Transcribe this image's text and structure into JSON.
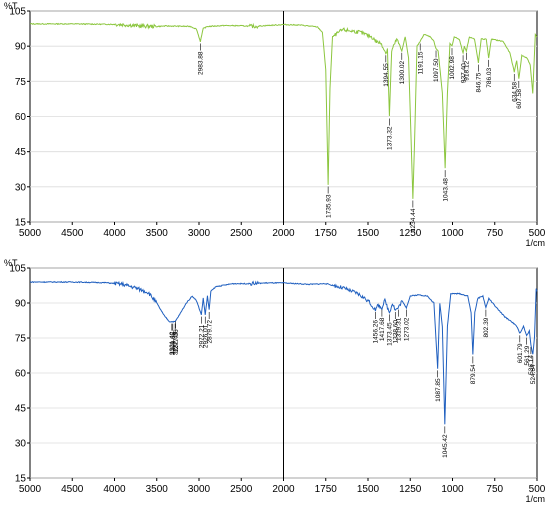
{
  "chart_data": [
    {
      "type": "line",
      "x_unit": "1/cm",
      "y_unit": "%T",
      "xlim": [
        5000,
        500
      ],
      "ylim": [
        15,
        105
      ],
      "x_ticks": [
        "5000",
        "4500",
        "4000",
        "3500",
        "3000",
        "2500",
        "2000",
        "1750",
        "1500",
        "1250",
        "1000",
        "750",
        "500"
      ],
      "y_ticks": [
        "15",
        "30",
        "45",
        "60",
        "75",
        "90",
        "105"
      ],
      "series_color": "#8cc63f",
      "peaks": [
        {
          "label": "2983.88",
          "x": 2983.88,
          "y": 92
        },
        {
          "label": "1735.93",
          "x": 1735.93,
          "y": 31
        },
        {
          "label": "1394.55",
          "x": 1394.55,
          "y": 87
        },
        {
          "label": "1373.32",
          "x": 1373.32,
          "y": 60
        },
        {
          "label": "1300.02",
          "x": 1300.02,
          "y": 88
        },
        {
          "label": "1234.44",
          "x": 1234.44,
          "y": 25
        },
        {
          "label": "1191.15",
          "x": 1191.15,
          "y": 92
        },
        {
          "label": "1097.50",
          "x": 1097.5,
          "y": 89
        },
        {
          "label": "1043.48",
          "x": 1043.48,
          "y": 38
        },
        {
          "label": "1002.98",
          "x": 1002.98,
          "y": 90
        },
        {
          "label": "937.40",
          "x": 937.4,
          "y": 87
        },
        {
          "label": "918.12",
          "x": 918.12,
          "y": 88
        },
        {
          "label": "846.75",
          "x": 846.75,
          "y": 83
        },
        {
          "label": "786.03",
          "x": 786.03,
          "y": 85
        },
        {
          "label": "634.58",
          "x": 634.58,
          "y": 79
        },
        {
          "label": "607.58",
          "x": 607.58,
          "y": 76
        }
      ],
      "points": [
        [
          5000,
          99.5
        ],
        [
          4500,
          99.5
        ],
        [
          4000,
          99.3
        ],
        [
          3900,
          99.2
        ],
        [
          3700,
          98.6
        ],
        [
          3600,
          98.5
        ],
        [
          3500,
          98.4
        ],
        [
          3400,
          98.6
        ],
        [
          3200,
          98.5
        ],
        [
          3100,
          98.4
        ],
        [
          3030,
          97.3
        ],
        [
          2983.88,
          92
        ],
        [
          2950,
          97.5
        ],
        [
          2900,
          98.4
        ],
        [
          2700,
          98.8
        ],
        [
          2500,
          98.7
        ],
        [
          2350,
          98.4
        ],
        [
          2200,
          98.8
        ],
        [
          2000,
          99.2
        ],
        [
          1900,
          99
        ],
        [
          1800,
          98.2
        ],
        [
          1770,
          96
        ],
        [
          1750,
          80
        ],
        [
          1735.93,
          31
        ],
        [
          1725,
          72
        ],
        [
          1710,
          94
        ],
        [
          1650,
          97
        ],
        [
          1550,
          96
        ],
        [
          1480,
          94
        ],
        [
          1450,
          92
        ],
        [
          1420,
          91
        ],
        [
          1394.55,
          87
        ],
        [
          1385,
          89
        ],
        [
          1373.32,
          60
        ],
        [
          1360,
          88
        ],
        [
          1330,
          93
        ],
        [
          1300.02,
          88
        ],
        [
          1280,
          94
        ],
        [
          1260,
          85
        ],
        [
          1245,
          50
        ],
        [
          1234.44,
          25
        ],
        [
          1225,
          48
        ],
        [
          1210,
          90
        ],
        [
          1191.15,
          92
        ],
        [
          1170,
          95
        ],
        [
          1130,
          94
        ],
        [
          1110,
          92
        ],
        [
          1097.5,
          89
        ],
        [
          1085,
          88
        ],
        [
          1060,
          70
        ],
        [
          1043.48,
          38
        ],
        [
          1030,
          70
        ],
        [
          1015,
          91
        ],
        [
          1002.98,
          90
        ],
        [
          990,
          94
        ],
        [
          960,
          93
        ],
        [
          937.4,
          87
        ],
        [
          930,
          90
        ],
        [
          918.12,
          88
        ],
        [
          900,
          94
        ],
        [
          870,
          93
        ],
        [
          846.75,
          83
        ],
        [
          830,
          93
        ],
        [
          800,
          93
        ],
        [
          786.03,
          85
        ],
        [
          770,
          93
        ],
        [
          700,
          92
        ],
        [
          660,
          87
        ],
        [
          634.58,
          79
        ],
        [
          620,
          84
        ],
        [
          607.58,
          76
        ],
        [
          590,
          86
        ],
        [
          560,
          85
        ],
        [
          540,
          82
        ],
        [
          525,
          70
        ],
        [
          510,
          95
        ],
        [
          500,
          94
        ]
      ]
    },
    {
      "type": "line",
      "x_unit": "1/cm",
      "y_unit": "%T",
      "xlim": [
        5000,
        500
      ],
      "ylim": [
        15,
        105
      ],
      "x_ticks": [
        "5000",
        "4500",
        "4000",
        "3500",
        "3000",
        "2500",
        "2000",
        "1750",
        "1500",
        "1250",
        "1000",
        "750",
        "500"
      ],
      "y_ticks": [
        "15",
        "30",
        "45",
        "60",
        "75",
        "90",
        "105"
      ],
      "series_color": "#1f5fbf",
      "peaks": [
        {
          "label": "3321.42",
          "x": 3321.42,
          "y": 82
        },
        {
          "label": "3309.85",
          "x": 3309.85,
          "y": 82
        },
        {
          "label": "3282.49",
          "x": 3282.49,
          "y": 82
        },
        {
          "label": "3277.06",
          "x": 3277.06,
          "y": 83
        },
        {
          "label": "2972.21",
          "x": 2972.21,
          "y": 85
        },
        {
          "label": "2926.01",
          "x": 2926.01,
          "y": 85
        },
        {
          "label": "2879.72",
          "x": 2879.72,
          "y": 87
        },
        {
          "label": "1456.26",
          "x": 1456.26,
          "y": 87
        },
        {
          "label": "1417.68",
          "x": 1417.68,
          "y": 88
        },
        {
          "label": "1373.45",
          "x": 1373.45,
          "y": 86
        },
        {
          "label": "1338.60",
          "x": 1338.6,
          "y": 87
        },
        {
          "label": "1319.31",
          "x": 1319.31,
          "y": 88
        },
        {
          "label": "1273.02",
          "x": 1273.02,
          "y": 88
        },
        {
          "label": "1087.85",
          "x": 1087.85,
          "y": 62
        },
        {
          "label": "1045.42",
          "x": 1045.42,
          "y": 38
        },
        {
          "label": "879.54",
          "x": 879.54,
          "y": 68
        },
        {
          "label": "802.39",
          "x": 802.39,
          "y": 88
        },
        {
          "label": "601.79",
          "x": 601.79,
          "y": 77
        },
        {
          "label": "561.29",
          "x": 561.29,
          "y": 76
        },
        {
          "label": "536.14",
          "x": 536.14,
          "y": 72
        },
        {
          "label": "524.64",
          "x": 524.64,
          "y": 68
        }
      ],
      "points": [
        [
          5000,
          99
        ],
        [
          4500,
          99
        ],
        [
          4100,
          98.7
        ],
        [
          3900,
          98
        ],
        [
          3750,
          96.5
        ],
        [
          3600,
          94.5
        ],
        [
          3500,
          90
        ],
        [
          3420,
          85
        ],
        [
          3350,
          82
        ],
        [
          3321.42,
          82
        ],
        [
          3282.49,
          82
        ],
        [
          3230,
          85
        ],
        [
          3150,
          90
        ],
        [
          3080,
          93
        ],
        [
          3030,
          91
        ],
        [
          2972.21,
          85
        ],
        [
          2950,
          92
        ],
        [
          2926.01,
          85
        ],
        [
          2900,
          93
        ],
        [
          2879.72,
          87
        ],
        [
          2860,
          95
        ],
        [
          2800,
          97
        ],
        [
          2600,
          98.3
        ],
        [
          2400,
          98.3
        ],
        [
          2200,
          98.6
        ],
        [
          2000,
          98.6
        ],
        [
          1850,
          98
        ],
        [
          1750,
          98.3
        ],
        [
          1650,
          96.5
        ],
        [
          1560,
          94
        ],
        [
          1500,
          91
        ],
        [
          1456.26,
          87
        ],
        [
          1440,
          89
        ],
        [
          1417.68,
          88
        ],
        [
          1400,
          91
        ],
        [
          1373.45,
          86
        ],
        [
          1355,
          90
        ],
        [
          1338.6,
          87
        ],
        [
          1319.31,
          88
        ],
        [
          1300,
          91
        ],
        [
          1273.02,
          88
        ],
        [
          1250,
          93
        ],
        [
          1200,
          93.5
        ],
        [
          1150,
          93
        ],
        [
          1110,
          90
        ],
        [
          1087.85,
          62
        ],
        [
          1075,
          90
        ],
        [
          1060,
          80
        ],
        [
          1045.42,
          38
        ],
        [
          1030,
          80
        ],
        [
          1010,
          94
        ],
        [
          960,
          94
        ],
        [
          910,
          93
        ],
        [
          890,
          86
        ],
        [
          879.54,
          68
        ],
        [
          868,
          86
        ],
        [
          850,
          92
        ],
        [
          820,
          93
        ],
        [
          802.39,
          88
        ],
        [
          785,
          92
        ],
        [
          740,
          88
        ],
        [
          690,
          84
        ],
        [
          650,
          82
        ],
        [
          620,
          80
        ],
        [
          601.79,
          77
        ],
        [
          580,
          80
        ],
        [
          561.29,
          76
        ],
        [
          545,
          78
        ],
        [
          536.14,
          72
        ],
        [
          524.64,
          68
        ],
        [
          515,
          75
        ],
        [
          505,
          96
        ],
        [
          500,
          95
        ]
      ]
    }
  ]
}
